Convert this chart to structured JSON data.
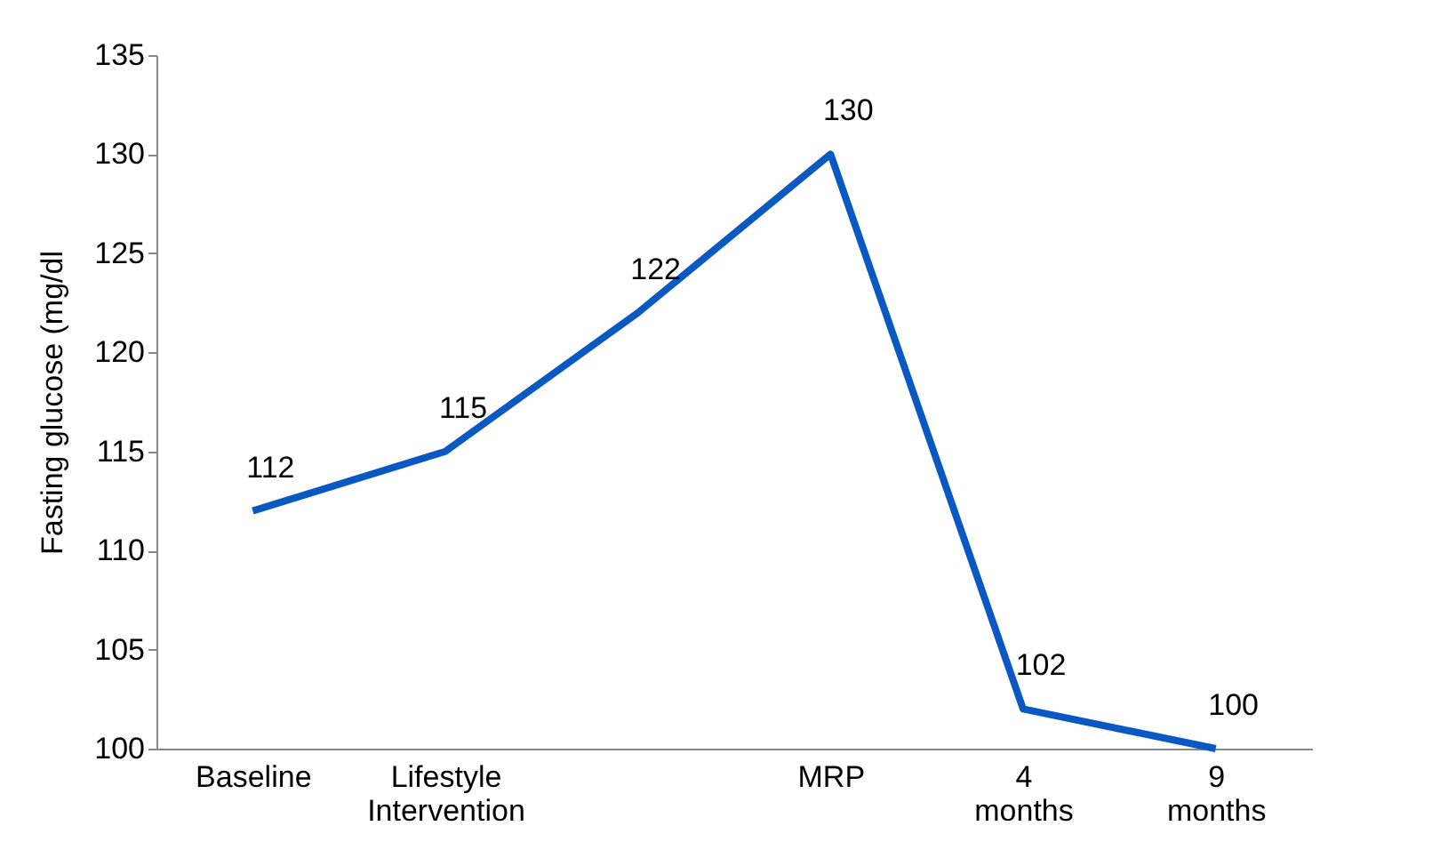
{
  "chart_data": {
    "type": "line",
    "ylabel": "Fasting glucose (mg/dl",
    "categories": [
      "Baseline",
      "Lifestyle Intervention",
      null,
      "MRP",
      "4 months",
      "9 months"
    ],
    "series": [
      {
        "color": "#0a58c2",
        "values": [
          112,
          115,
          122,
          130,
          102,
          100
        ]
      }
    ],
    "ylim": [
      100,
      135
    ],
    "yticks": [
      100,
      105,
      110,
      115,
      120,
      125,
      130,
      135
    ],
    "grid": false,
    "legend": false,
    "marker": "none",
    "line_style": "solid",
    "data_labels": true
  }
}
